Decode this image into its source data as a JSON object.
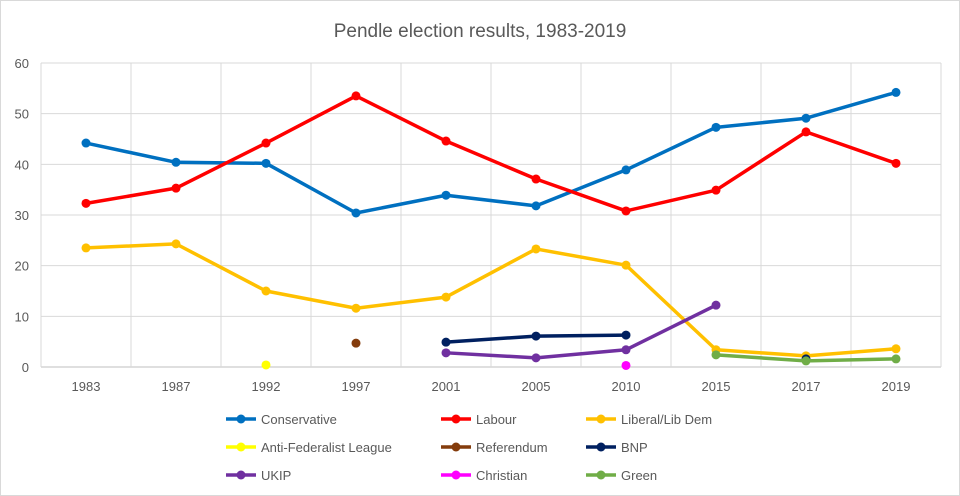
{
  "chart_data": {
    "type": "line",
    "title": "Pendle election results, 1983-2019",
    "categories": [
      "1983",
      "1987",
      "1992",
      "1997",
      "2001",
      "2005",
      "2010",
      "2015",
      "2017",
      "2019"
    ],
    "ylim": [
      0,
      60
    ],
    "yticks": [
      0,
      10,
      20,
      30,
      40,
      50,
      60
    ],
    "grid": true,
    "legend_placement": "bottom",
    "series": [
      {
        "name": "Conservative",
        "color": "#0070C0",
        "values": [
          44.2,
          40.4,
          40.2,
          30.4,
          33.9,
          31.8,
          38.9,
          47.3,
          49.1,
          54.2
        ]
      },
      {
        "name": "Labour",
        "color": "#FF0000",
        "values": [
          32.3,
          35.3,
          44.2,
          53.5,
          44.6,
          37.1,
          30.8,
          34.9,
          46.4,
          40.2
        ]
      },
      {
        "name": "Liberal/Lib Dem",
        "color": "#FFC000",
        "values": [
          23.5,
          24.3,
          15.0,
          11.6,
          13.8,
          23.3,
          20.1,
          3.4,
          2.2,
          3.6
        ]
      },
      {
        "name": "Anti-Federalist League",
        "color": "#FFFF00",
        "values": [
          null,
          null,
          0.4,
          null,
          null,
          null,
          null,
          null,
          null,
          null
        ]
      },
      {
        "name": "Referendum",
        "color": "#843C0C",
        "values": [
          null,
          null,
          null,
          4.7,
          null,
          null,
          null,
          null,
          null,
          null
        ]
      },
      {
        "name": "BNP",
        "color": "#002060",
        "values": [
          null,
          null,
          null,
          null,
          4.9,
          6.1,
          6.3,
          null,
          1.6,
          null
        ]
      },
      {
        "name": "UKIP",
        "color": "#7030A0",
        "values": [
          null,
          null,
          null,
          null,
          2.8,
          1.8,
          3.4,
          12.2,
          null,
          null
        ]
      },
      {
        "name": "Christian",
        "color": "#FF00FF",
        "values": [
          null,
          null,
          null,
          null,
          null,
          null,
          0.3,
          null,
          null,
          null
        ]
      },
      {
        "name": "Green",
        "color": "#70AD47",
        "values": [
          null,
          null,
          null,
          null,
          null,
          null,
          null,
          2.4,
          1.2,
          1.6
        ]
      }
    ]
  }
}
